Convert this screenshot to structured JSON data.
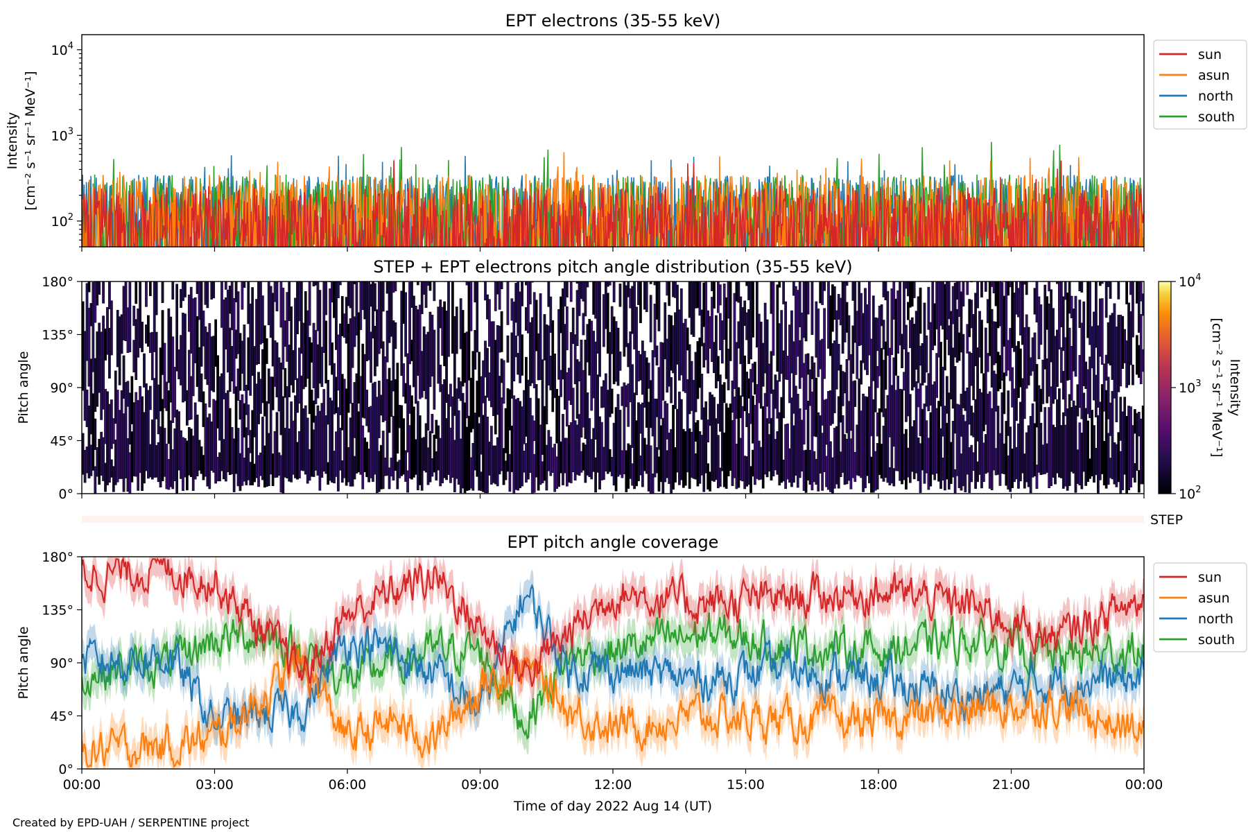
{
  "credit": "Created by EPD-UAH / SERPENTINE project",
  "colors": {
    "sun": "#d62728",
    "asun": "#ff7f0e",
    "north": "#1f77b4",
    "south": "#2ca02c",
    "step_band": "#fff1ec"
  },
  "chart_data": [
    {
      "type": "line",
      "title": "EPT electrons (35-55 keV)",
      "ylabel_line1": "Intensity",
      "ylabel_line2": "[cm⁻² s⁻¹ sr⁻¹ MeV⁻¹]",
      "yscale": "log",
      "ylim": [
        50,
        15000
      ],
      "yticks": [
        {
          "base": "10",
          "exp": "2"
        },
        {
          "base": "10",
          "exp": "3"
        },
        {
          "base": "10",
          "exp": "4"
        }
      ],
      "xlim_hours": [
        0,
        24
      ],
      "legend": {
        "placement": "outside-right-top",
        "entries": [
          "sun",
          "asun",
          "north",
          "south"
        ]
      },
      "series_profile": {
        "sun": {
          "typical_range": [
            50,
            250
          ],
          "peak": 640
        },
        "asun": {
          "typical_range": [
            50,
            350
          ],
          "peak": 640
        },
        "north": {
          "typical_range": [
            50,
            350
          ],
          "peak": 600
        },
        "south": {
          "typical_range": [
            50,
            350
          ],
          "peak": 850
        }
      }
    },
    {
      "type": "heatmap",
      "title": "STEP + EPT electrons pitch angle distribution (35-55 keV)",
      "ylabel": "Pitch angle",
      "ylim": [
        0,
        180
      ],
      "yticks": [
        "0°",
        "45°",
        "90°",
        "135°",
        "180°"
      ],
      "colorbar": {
        "label_line1": "Intensity",
        "label_line2": "[cm⁻² s⁻¹ sr⁻¹ MeV⁻¹]",
        "scale": "log",
        "range": [
          100,
          10000
        ],
        "ticks": [
          {
            "base": "10",
            "exp": "2"
          },
          {
            "base": "10",
            "exp": "3"
          },
          {
            "base": "10",
            "exp": "4"
          }
        ],
        "colormap": "inferno"
      },
      "typical_intensity_range": [
        100,
        300
      ]
    },
    {
      "type": "band",
      "label": "STEP"
    },
    {
      "type": "line",
      "title": "EPT pitch angle coverage",
      "ylabel": "Pitch angle",
      "ylim": [
        0,
        180
      ],
      "yticks": [
        "0°",
        "45°",
        "90°",
        "135°",
        "180°"
      ],
      "xlabel": "Time of day 2022 Aug 14 (UT)",
      "xticks": [
        "00:00",
        "03:00",
        "06:00",
        "09:00",
        "12:00",
        "15:00",
        "18:00",
        "21:00",
        "00:00"
      ],
      "legend": {
        "placement": "outside-right-top",
        "entries": [
          "sun",
          "asun",
          "north",
          "south"
        ]
      },
      "series": [
        {
          "name": "sun",
          "hours": [
            0,
            2,
            3,
            4,
            5,
            6,
            7,
            8,
            9,
            10,
            11,
            12,
            14,
            16,
            18,
            20,
            22,
            24
          ],
          "values": [
            165,
            170,
            160,
            120,
            80,
            130,
            150,
            165,
            120,
            80,
            115,
            150,
            140,
            145,
            150,
            140,
            110,
            145
          ]
        },
        {
          "name": "asun",
          "hours": [
            0,
            2,
            3,
            4,
            5,
            6,
            7,
            8,
            9,
            10,
            11,
            12,
            14,
            16,
            18,
            20,
            22,
            24
          ],
          "values": [
            15,
            20,
            25,
            60,
            90,
            25,
            40,
            25,
            70,
            90,
            50,
            35,
            45,
            40,
            40,
            50,
            55,
            30
          ]
        },
        {
          "name": "north",
          "hours": [
            0,
            2,
            3,
            4,
            5,
            6,
            7,
            8,
            9,
            10,
            11,
            12,
            14,
            16,
            18,
            20,
            22,
            24
          ],
          "values": [
            90,
            95,
            40,
            45,
            50,
            110,
            100,
            80,
            50,
            150,
            85,
            85,
            75,
            85,
            75,
            60,
            75,
            75
          ]
        },
        {
          "name": "south",
          "hours": [
            0,
            2,
            3,
            4,
            5,
            6,
            7,
            8,
            9,
            10,
            11,
            12,
            14,
            16,
            18,
            20,
            22,
            24
          ],
          "values": [
            80,
            90,
            110,
            115,
            100,
            75,
            90,
            100,
            100,
            40,
            95,
            100,
            115,
            105,
            100,
            110,
            95,
            100
          ]
        }
      ]
    }
  ]
}
